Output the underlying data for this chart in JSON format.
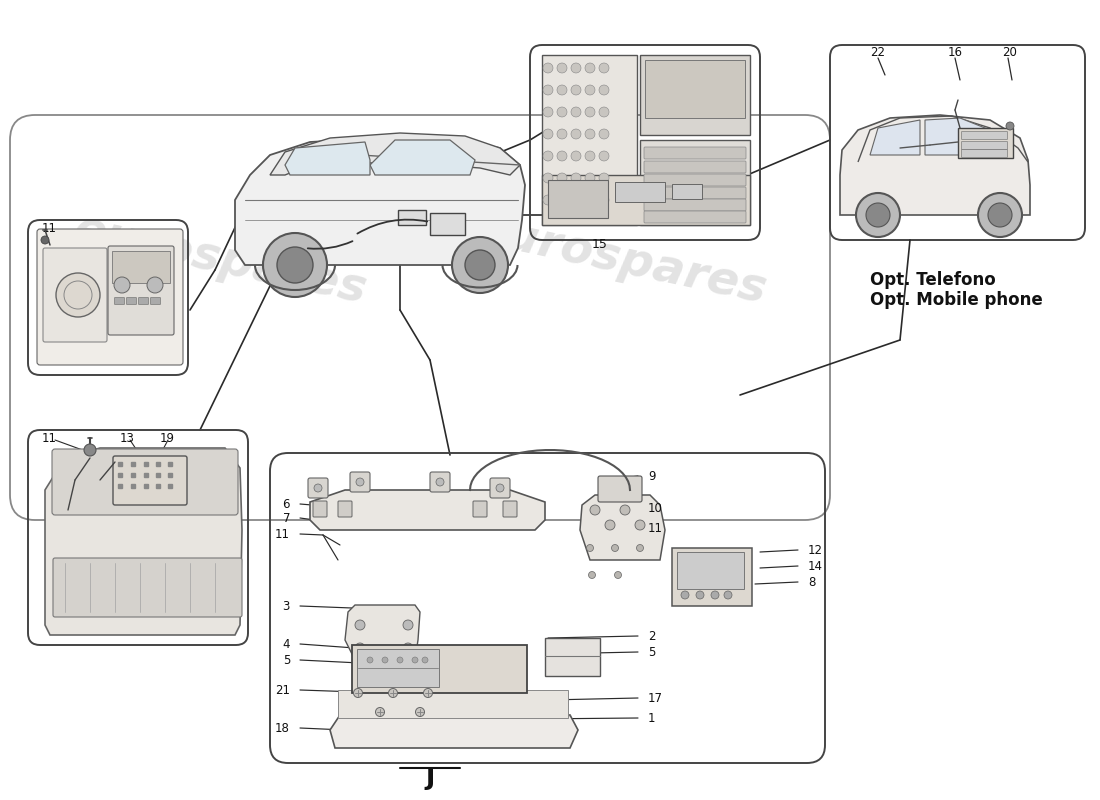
{
  "background_color": "#ffffff",
  "watermark_text": "eurospares",
  "label_J": "J",
  "opt_text_line1": "Opt. Telefono",
  "opt_text_line2": "Opt. Mobile phone",
  "line_color": "#2a2a2a",
  "box_line_color": "#444444",
  "text_color": "#111111",
  "light_gray": "#d8d8d8",
  "mid_gray": "#aaaaaa",
  "car_color": "#cccccc",
  "watermark_color": "#dddddd"
}
